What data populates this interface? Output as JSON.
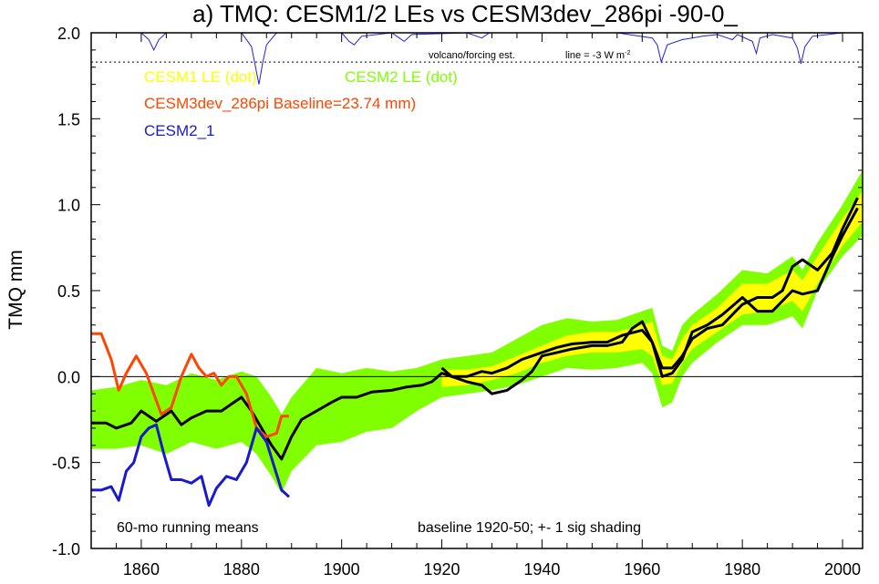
{
  "chart_data": {
    "type": "line",
    "title": "a) TMQ: CESM1/2 LEs vs CESM3dev_286pi -90-0_",
    "ylabel": "TMQ mm",
    "xlabel": "",
    "xlim": [
      1850,
      2004
    ],
    "ylim": [
      -1.0,
      2.0
    ],
    "xticks": [
      1860,
      1880,
      1900,
      1920,
      1940,
      1960,
      1980,
      2000
    ],
    "yticks": [
      2.0,
      1.5,
      1.0,
      0.5,
      0.0,
      -0.5,
      -1.0
    ],
    "ytick_labels": [
      "2.0",
      "1.5",
      "1.0",
      "0.5",
      "0.0",
      "-0.5",
      "-1.0"
    ],
    "zero_line": 0.0,
    "grid": false,
    "legend": {
      "cesm1": "CESM1 LE (dot)",
      "cesm2": "CESM2 LE (dot)",
      "cesm3": "CESM3dev_286pi Baseline=23.74 mm)",
      "cesm2_1": "CESM2_1"
    },
    "annotations": {
      "volcano_label": "volcano/forcing est.",
      "volcano_scale": "line = -3 W m",
      "volcano_scale_sup": "-2",
      "running_means": "60-mo running means",
      "baseline_note": "baseline 1920-50; +- 1 sig shading"
    },
    "colors": {
      "cesm1": "#ffff00",
      "cesm2": "#7fff00",
      "cesm3": "#ff4500",
      "cesm2_1": "#1a1acd",
      "ensemble_mean": "#000000",
      "volcano": "#2020e0"
    },
    "volcano_ref_y": 1.83,
    "cesm2_band": {
      "x": [
        1850,
        1855,
        1860,
        1865,
        1870,
        1875,
        1880,
        1883,
        1886,
        1888,
        1890,
        1895,
        1900,
        1905,
        1910,
        1915,
        1920,
        1925,
        1930,
        1935,
        1940,
        1945,
        1950,
        1955,
        1960,
        1962,
        1964,
        1966,
        1968,
        1970,
        1975,
        1980,
        1985,
        1990,
        1992,
        1995,
        2000,
        2004
      ],
      "upper": [
        -0.08,
        -0.06,
        -0.02,
        -0.05,
        0.02,
        -0.02,
        0.03,
        0.0,
        -0.12,
        -0.22,
        -0.12,
        0.05,
        0.02,
        0.05,
        0.03,
        0.05,
        0.1,
        0.12,
        0.14,
        0.22,
        0.3,
        0.34,
        0.32,
        0.33,
        0.38,
        0.4,
        0.18,
        0.15,
        0.3,
        0.36,
        0.48,
        0.62,
        0.6,
        0.7,
        0.62,
        0.78,
        1.0,
        1.2
      ],
      "lower": [
        -0.42,
        -0.42,
        -0.4,
        -0.45,
        -0.38,
        -0.42,
        -0.38,
        -0.45,
        -0.58,
        -0.68,
        -0.55,
        -0.4,
        -0.38,
        -0.32,
        -0.3,
        -0.2,
        -0.12,
        -0.1,
        -0.08,
        -0.05,
        0.0,
        0.05,
        0.04,
        0.05,
        0.08,
        0.02,
        -0.18,
        -0.15,
        0.0,
        0.08,
        0.2,
        0.3,
        0.3,
        0.35,
        0.28,
        0.5,
        0.7,
        0.82
      ]
    },
    "cesm1_band": {
      "x": [
        1920,
        1925,
        1930,
        1935,
        1940,
        1945,
        1950,
        1955,
        1960,
        1962,
        1964,
        1966,
        1968,
        1970,
        1975,
        1980,
        1985,
        1990,
        1992,
        1995,
        2000,
        2004
      ],
      "upper": [
        0.04,
        0.04,
        0.06,
        0.12,
        0.18,
        0.24,
        0.26,
        0.26,
        0.3,
        0.32,
        0.12,
        0.1,
        0.22,
        0.3,
        0.4,
        0.54,
        0.54,
        0.62,
        0.56,
        0.7,
        0.92,
        1.08
      ],
      "lower": [
        -0.06,
        -0.05,
        -0.02,
        0.02,
        0.08,
        0.12,
        0.14,
        0.14,
        0.16,
        0.12,
        -0.05,
        -0.04,
        0.08,
        0.16,
        0.26,
        0.36,
        0.38,
        0.44,
        0.38,
        0.54,
        0.76,
        0.9
      ]
    },
    "ensemble_means": [
      {
        "x": [
          1850,
          1853,
          1855,
          1858,
          1860,
          1863,
          1866,
          1868,
          1870,
          1873,
          1876,
          1878,
          1880,
          1882,
          1884,
          1886,
          1888,
          1890,
          1892,
          1895,
          1898,
          1900,
          1903,
          1906,
          1910,
          1913,
          1916,
          1918,
          1920,
          1922,
          1925,
          1928,
          1930,
          1933,
          1936,
          1940,
          1943,
          1946,
          1950,
          1953,
          1956,
          1960,
          1962,
          1964,
          1966,
          1968,
          1970,
          1973,
          1976,
          1980,
          1983,
          1986,
          1988,
          1990,
          1992,
          1995,
          1998,
          2000,
          2003
        ],
        "y": [
          -0.27,
          -0.27,
          -0.3,
          -0.27,
          -0.2,
          -0.26,
          -0.2,
          -0.28,
          -0.24,
          -0.2,
          -0.2,
          -0.16,
          -0.12,
          -0.2,
          -0.3,
          -0.4,
          -0.48,
          -0.35,
          -0.25,
          -0.2,
          -0.15,
          -0.12,
          -0.12,
          -0.09,
          -0.08,
          -0.06,
          -0.05,
          -0.03,
          0.02,
          0.0,
          0.0,
          0.03,
          0.02,
          0.05,
          0.1,
          0.14,
          0.17,
          0.19,
          0.2,
          0.2,
          0.24,
          0.27,
          0.2,
          0.05,
          0.05,
          0.12,
          0.22,
          0.28,
          0.3,
          0.42,
          0.46,
          0.46,
          0.5,
          0.64,
          0.68,
          0.62,
          0.72,
          0.86,
          1.04
        ]
      },
      {
        "x": [
          1920,
          1922,
          1925,
          1928,
          1930,
          1933,
          1936,
          1938,
          1940,
          1943,
          1946,
          1950,
          1953,
          1956,
          1958,
          1960,
          1962,
          1964,
          1966,
          1968,
          1970,
          1973,
          1976,
          1980,
          1983,
          1986,
          1988,
          1990,
          1992,
          1995,
          1998,
          2000,
          2003
        ],
        "y": [
          0.05,
          0.0,
          -0.03,
          -0.05,
          -0.1,
          -0.08,
          -0.02,
          0.03,
          0.12,
          0.14,
          0.16,
          0.18,
          0.18,
          0.2,
          0.28,
          0.32,
          0.2,
          0.0,
          0.02,
          0.1,
          0.26,
          0.3,
          0.36,
          0.46,
          0.38,
          0.38,
          0.44,
          0.5,
          0.48,
          0.5,
          0.7,
          0.82,
          0.98
        ]
      }
    ],
    "series": [
      {
        "name": "CESM3dev_286pi",
        "x": [
          1850,
          1852,
          1854,
          1855.5,
          1857,
          1859,
          1861,
          1862.5,
          1864,
          1866,
          1868,
          1870,
          1871.5,
          1873,
          1874.5,
          1876,
          1877.5,
          1879,
          1881,
          1883,
          1885,
          1887,
          1888,
          1889.5
        ],
        "y": [
          0.25,
          0.25,
          0.1,
          -0.08,
          0.02,
          0.12,
          0.02,
          -0.1,
          -0.22,
          -0.18,
          0.0,
          0.13,
          0.05,
          0.0,
          0.02,
          -0.05,
          0.0,
          0.0,
          -0.1,
          -0.3,
          -0.35,
          -0.33,
          -0.23,
          -0.23
        ]
      },
      {
        "name": "CESM2_1",
        "x": [
          1850,
          1852,
          1854,
          1855.5,
          1857,
          1858.5,
          1860,
          1861.5,
          1863,
          1864.5,
          1866,
          1868,
          1870,
          1872,
          1873.5,
          1875,
          1877,
          1879,
          1881,
          1883,
          1885,
          1886.5,
          1888,
          1889.5
        ],
        "y": [
          -0.66,
          -0.66,
          -0.64,
          -0.72,
          -0.55,
          -0.5,
          -0.35,
          -0.3,
          -0.28,
          -0.45,
          -0.6,
          -0.6,
          -0.62,
          -0.58,
          -0.75,
          -0.65,
          -0.58,
          -0.6,
          -0.5,
          -0.3,
          -0.38,
          -0.52,
          -0.66,
          -0.7
        ]
      }
    ],
    "volcano_forcing": {
      "x": [
        1850,
        1860,
        1861.5,
        1862.5,
        1863.5,
        1865,
        1880,
        1882,
        1883.5,
        1884.2,
        1885,
        1887,
        1890,
        1900,
        1901.5,
        1902.5,
        1904,
        1910,
        1911.5,
        1912.5,
        1914,
        1925,
        1927,
        1928,
        1929.5,
        1955,
        1962,
        1963,
        1963.8,
        1965,
        1968,
        1970,
        1972,
        1975,
        1977,
        1978,
        1979,
        1982,
        1982.8,
        1983.5,
        1986,
        1990,
        1991,
        1991.7,
        1992.5,
        1994,
        2000,
        2004
      ],
      "y": [
        2.0,
        2.0,
        1.96,
        1.9,
        1.96,
        2.0,
        2.0,
        1.92,
        1.7,
        1.82,
        1.93,
        2.0,
        2.0,
        2.0,
        1.95,
        1.93,
        1.98,
        2.0,
        1.97,
        1.95,
        1.99,
        2.0,
        1.98,
        1.97,
        2.0,
        2.0,
        1.97,
        1.93,
        1.83,
        1.93,
        1.96,
        1.97,
        1.98,
        1.99,
        1.97,
        1.96,
        1.99,
        1.95,
        1.88,
        1.97,
        1.99,
        1.97,
        1.91,
        1.82,
        1.92,
        1.98,
        2.0,
        2.0
      ]
    }
  }
}
